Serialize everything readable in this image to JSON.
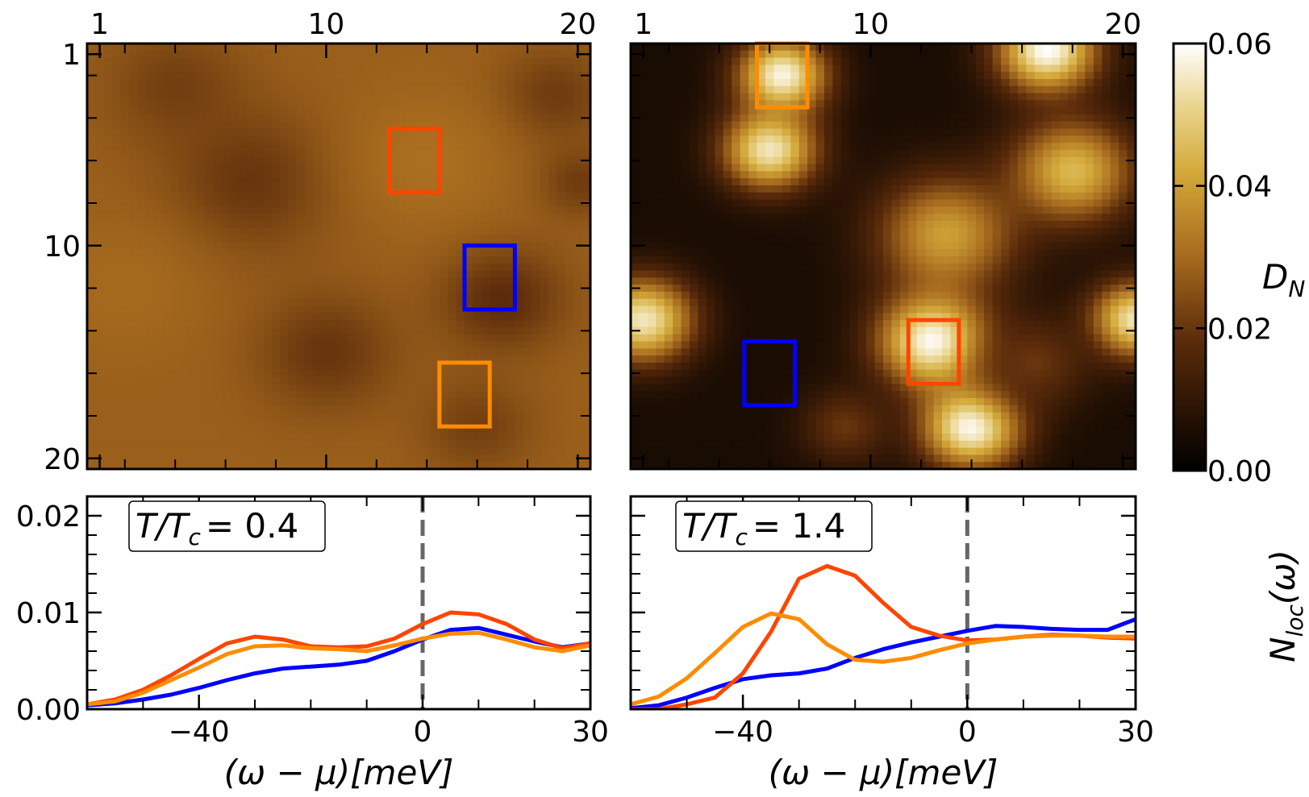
{
  "chart_data": [
    {
      "type": "heatmap",
      "panel": "top-left",
      "description_of_field": "local density map D_N",
      "x_tick_labels": [
        "1",
        "10",
        "20"
      ],
      "x_ticks": [
        1,
        10,
        20
      ],
      "y_tick_labels": [
        "1",
        "10",
        "20"
      ],
      "y_ticks": [
        1,
        10,
        20
      ],
      "grid_extent": [
        0.5,
        20.5
      ],
      "value_range": [
        0.0,
        0.06
      ],
      "blobs": [
        {
          "x": 4,
          "y": 2.5,
          "r": 2.5,
          "v": 0.022
        },
        {
          "x": 7,
          "y": 7,
          "r": 3,
          "v": 0.02
        },
        {
          "x": 10,
          "y": 15,
          "r": 2.5,
          "v": 0.02
        },
        {
          "x": 17,
          "y": 12.5,
          "r": 2.2,
          "v": 0.018
        },
        {
          "x": 19,
          "y": 3,
          "r": 2,
          "v": 0.021
        },
        {
          "x": 20,
          "y": 7,
          "r": 1.5,
          "v": 0.021
        },
        {
          "x": 16,
          "y": 18.5,
          "r": 2,
          "v": 0.022
        },
        {
          "x": 14,
          "y": 6,
          "r": 3,
          "v": 0.031
        },
        {
          "x": 2,
          "y": 12,
          "r": 3,
          "v": 0.03
        }
      ],
      "base_value": 0.028,
      "boxes": [
        {
          "color": "#ff4500",
          "x0": 12.5,
          "x1": 14.5,
          "y0": 4.5,
          "y1": 7.5
        },
        {
          "color": "#0000ff",
          "x0": 15.5,
          "x1": 17.5,
          "y0": 10,
          "y1": 13
        },
        {
          "color": "#ff8c00",
          "x0": 14.5,
          "x1": 16.5,
          "y0": 15.5,
          "y1": 18.5
        }
      ]
    },
    {
      "type": "heatmap",
      "panel": "top-right",
      "description_of_field": "local density map D_N",
      "x_tick_labels": [
        "1",
        "10",
        "20"
      ],
      "x_ticks": [
        1,
        10,
        20
      ],
      "y_ticks": [
        1,
        10,
        20
      ],
      "grid_extent": [
        0.5,
        20.5
      ],
      "value_range": [
        0.0,
        0.06
      ],
      "base_value": 0.005,
      "blobs": [
        {
          "x": 6.5,
          "y": 2,
          "r": 1.6,
          "v": 0.058
        },
        {
          "x": 6,
          "y": 5.5,
          "r": 1.7,
          "v": 0.055
        },
        {
          "x": 17,
          "y": 0.8,
          "r": 1.8,
          "v": 0.06
        },
        {
          "x": 18,
          "y": 6.5,
          "r": 2.2,
          "v": 0.045
        },
        {
          "x": 13,
          "y": 9.5,
          "r": 2.5,
          "v": 0.04
        },
        {
          "x": 12.5,
          "y": 14.5,
          "r": 2,
          "v": 0.06
        },
        {
          "x": 14,
          "y": 18.5,
          "r": 1.8,
          "v": 0.06
        },
        {
          "x": 1,
          "y": 13.5,
          "r": 1.8,
          "v": 0.055
        },
        {
          "x": 20.5,
          "y": 13.5,
          "r": 1.6,
          "v": 0.055
        },
        {
          "x": 9,
          "y": 18.5,
          "r": 1.6,
          "v": 0.02
        },
        {
          "x": 16.5,
          "y": 15.5,
          "r": 2,
          "v": 0.02
        }
      ],
      "boxes": [
        {
          "color": "#ff8c00",
          "x0": 5.5,
          "x1": 7.5,
          "y0": 0.5,
          "y1": 3.5
        },
        {
          "color": "#ff4500",
          "x0": 11.5,
          "x1": 13.5,
          "y0": 13.5,
          "y1": 16.5
        },
        {
          "color": "#0000ff",
          "x0": 5,
          "x1": 7,
          "y0": 14.5,
          "y1": 17.5
        }
      ]
    },
    {
      "type": "line",
      "panel": "bottom-left",
      "annotation": "T/T_c = 0.4",
      "annotation_main": "T/T",
      "annotation_sub": "c",
      "annotation_value": "= 0.4",
      "xlabel": "(ω − μ)[meV]",
      "xlim": [
        -60,
        30
      ],
      "ylim": [
        0.0,
        0.022
      ],
      "x_tick_labels": [
        "−40",
        "0",
        "30"
      ],
      "x_ticks": [
        -40,
        0,
        30
      ],
      "y_tick_labels": [
        "0.00",
        "0.01",
        "0.02"
      ],
      "y_ticks": [
        0.0,
        0.01,
        0.02
      ],
      "vline_x": 0,
      "series": [
        {
          "name": "blue region",
          "color": "#0000ff",
          "x": [
            -60,
            -55,
            -50,
            -45,
            -40,
            -35,
            -30,
            -25,
            -20,
            -15,
            -10,
            -5,
            0,
            5,
            10,
            15,
            20,
            25,
            30
          ],
          "y": [
            0.0004,
            0.0006,
            0.001,
            0.0015,
            0.0022,
            0.003,
            0.0037,
            0.0042,
            0.0044,
            0.0046,
            0.005,
            0.006,
            0.0072,
            0.0082,
            0.0084,
            0.0077,
            0.007,
            0.0064,
            0.0068
          ]
        },
        {
          "name": "red region",
          "color": "#ff4500",
          "x": [
            -60,
            -55,
            -50,
            -45,
            -40,
            -35,
            -30,
            -25,
            -20,
            -15,
            -10,
            -5,
            0,
            5,
            10,
            15,
            20,
            25,
            30
          ],
          "y": [
            0.0005,
            0.001,
            0.002,
            0.0035,
            0.0052,
            0.0068,
            0.0075,
            0.0072,
            0.0065,
            0.0064,
            0.0065,
            0.0073,
            0.0088,
            0.01,
            0.0098,
            0.0088,
            0.0072,
            0.0063,
            0.0068
          ]
        },
        {
          "name": "orange region",
          "color": "#ff8c00",
          "x": [
            -60,
            -55,
            -50,
            -45,
            -40,
            -35,
            -30,
            -25,
            -20,
            -15,
            -10,
            -5,
            0,
            5,
            10,
            15,
            20,
            25,
            30
          ],
          "y": [
            0.0005,
            0.0008,
            0.0017,
            0.003,
            0.0043,
            0.0057,
            0.0065,
            0.0066,
            0.0063,
            0.0062,
            0.006,
            0.0066,
            0.0073,
            0.0078,
            0.0079,
            0.0072,
            0.0064,
            0.006,
            0.0066
          ]
        }
      ]
    },
    {
      "type": "line",
      "panel": "bottom-right",
      "annotation": "T/T_c = 1.4",
      "annotation_main": "T/T",
      "annotation_sub": "c",
      "annotation_value": "= 1.4",
      "xlabel": "(ω − μ)[meV]",
      "xlim": [
        -60,
        30
      ],
      "ylim": [
        0.0,
        0.022
      ],
      "x_tick_labels": [
        "−40",
        "0",
        "30"
      ],
      "x_ticks": [
        -40,
        0,
        30
      ],
      "y_ticks": [
        0.0,
        0.01,
        0.02
      ],
      "vline_x": 0,
      "series": [
        {
          "name": "blue region",
          "color": "#0000ff",
          "x": [
            -60,
            -55,
            -50,
            -45,
            -40,
            -35,
            -30,
            -25,
            -20,
            -15,
            -10,
            -5,
            0,
            5,
            10,
            15,
            20,
            25,
            30
          ],
          "y": [
            0.0001,
            0.0004,
            0.0012,
            0.0022,
            0.0031,
            0.0035,
            0.0037,
            0.0042,
            0.0053,
            0.0062,
            0.0069,
            0.0075,
            0.0081,
            0.0086,
            0.0085,
            0.0083,
            0.0082,
            0.0082,
            0.0093
          ]
        },
        {
          "name": "red region",
          "color": "#ff4500",
          "x": [
            -60,
            -55,
            -50,
            -45,
            -40,
            -35,
            -30,
            -25,
            -20,
            -15,
            -10,
            -5,
            0,
            5,
            10,
            15,
            20,
            25,
            30
          ],
          "y": [
            0.0,
            0.0,
            0.0005,
            0.0012,
            0.0037,
            0.008,
            0.0135,
            0.0148,
            0.0138,
            0.011,
            0.0085,
            0.0076,
            0.0071,
            0.0072,
            0.0075,
            0.0077,
            0.0076,
            0.0074,
            0.0073
          ]
        },
        {
          "name": "orange region",
          "color": "#ff8c00",
          "x": [
            -60,
            -55,
            -50,
            -45,
            -40,
            -35,
            -30,
            -25,
            -20,
            -15,
            -10,
            -5,
            0,
            5,
            10,
            15,
            20,
            25,
            30
          ],
          "y": [
            0.0005,
            0.0013,
            0.0032,
            0.0058,
            0.0085,
            0.0099,
            0.0093,
            0.0067,
            0.0051,
            0.0049,
            0.0053,
            0.0061,
            0.0068,
            0.0072,
            0.0075,
            0.0076,
            0.0076,
            0.0075,
            0.0075
          ]
        }
      ]
    }
  ],
  "colorbar": {
    "label_main": "D",
    "label_sub": "N",
    "tick_labels": [
      "0.00",
      "0.02",
      "0.04",
      "0.06"
    ],
    "ticks": [
      0.0,
      0.02,
      0.04,
      0.06
    ],
    "range": [
      0.0,
      0.06
    ]
  },
  "bottom_ylabel": "N_loc(ω)",
  "bottom_ylabel_main": "N",
  "bottom_ylabel_sub": "loc",
  "bottom_ylabel_arg": "(ω)"
}
